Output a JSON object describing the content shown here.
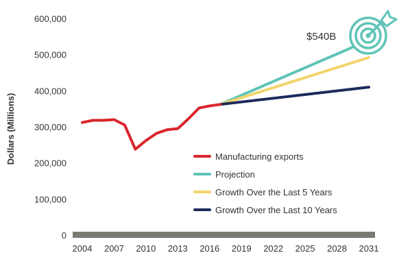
{
  "chart_data": {
    "type": "line",
    "ylabel": "Dollars (Millions)",
    "xlabel": "",
    "ylim": [
      0,
      600000
    ],
    "xlim": [
      2004,
      2031
    ],
    "y_ticks": [
      "0",
      "100,000",
      "200,000",
      "300,000",
      "400,000",
      "500,000",
      "600,000"
    ],
    "x_ticks": [
      "2004",
      "2007",
      "2010",
      "2013",
      "2016",
      "2019",
      "2022",
      "2025",
      "2028",
      "2031"
    ],
    "annotation": "$540B",
    "series": [
      {
        "name": "Manufacturing exports",
        "color": "#d9262c",
        "x": [
          2004,
          2005,
          2006,
          2007,
          2008,
          2009,
          2010,
          2011,
          2012,
          2013,
          2014,
          2015,
          2016,
          2017
        ],
        "y": [
          312000,
          318000,
          318000,
          320000,
          305000,
          238000,
          262000,
          282000,
          292000,
          295000,
          322000,
          352000,
          358000,
          362000
        ]
      },
      {
        "name": "Projection",
        "color": "#5ec4b7",
        "x": [
          2017,
          2031
        ],
        "y": [
          362000,
          540000
        ]
      },
      {
        "name": "Growth Over the Last 5 Years",
        "color": "#f2d46a",
        "x": [
          2017,
          2031
        ],
        "y": [
          362000,
          492000
        ]
      },
      {
        "name": "Growth Over the Last 10 Years",
        "color": "#1c2a5c",
        "x": [
          2017,
          2031
        ],
        "y": [
          362000,
          410000
        ]
      }
    ]
  },
  "icons": {
    "target": "target-arrow-icon",
    "target_color": "#5ec4b7"
  },
  "colors": {
    "baseline": "#7a7a72",
    "text": "#333333"
  }
}
